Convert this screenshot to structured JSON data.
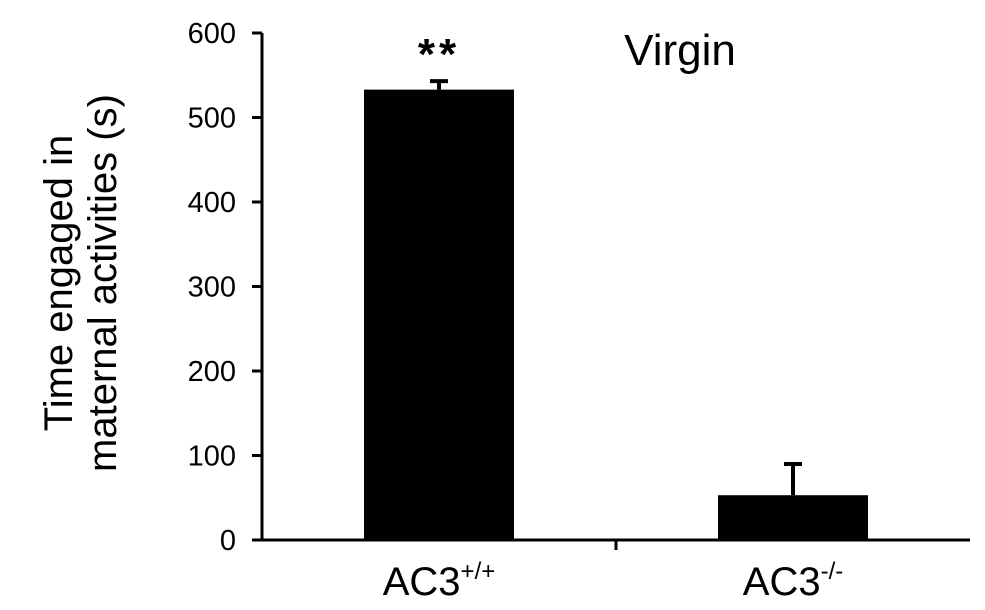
{
  "chart_data": {
    "type": "bar",
    "categories": [
      {
        "base": "AC3",
        "sup": "+/+"
      },
      {
        "base": "AC3",
        "sup": "-/-"
      }
    ],
    "values": [
      533,
      53
    ],
    "errors": [
      10,
      37
    ],
    "significance": [
      "**",
      ""
    ],
    "panel_label": "Virgin",
    "ylabel_lines": [
      "Time engaged in",
      "maternal activities (s)"
    ],
    "ylim": [
      0,
      600
    ],
    "yticks": [
      0,
      100,
      200,
      300,
      400,
      500,
      600
    ],
    "bar_color": "#000000",
    "grid": false
  }
}
